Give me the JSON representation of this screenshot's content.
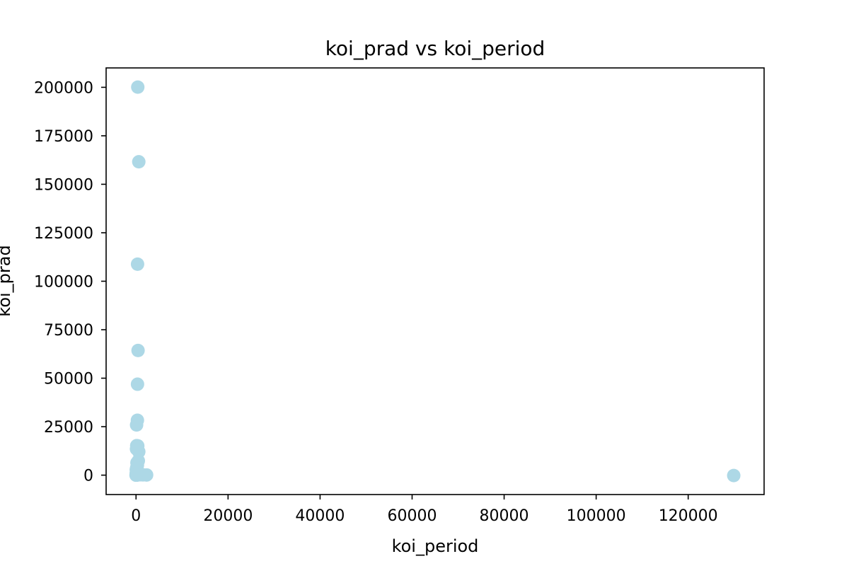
{
  "chart_data": {
    "type": "scatter",
    "title": "koi_prad vs koi_period",
    "xlabel": "koi_period",
    "ylabel": "koi_prad",
    "xlim": [
      -6500,
      136500
    ],
    "ylim": [
      -10000,
      210000
    ],
    "xticks": [
      0,
      20000,
      40000,
      60000,
      80000,
      100000,
      120000
    ],
    "yticks": [
      0,
      25000,
      50000,
      75000,
      100000,
      125000,
      150000,
      175000,
      200000
    ],
    "grid": false,
    "legend": "none",
    "marker_color": "#add8e6",
    "series": [
      {
        "points": [
          [
            380,
            200100
          ],
          [
            600,
            161600
          ],
          [
            330,
            108800
          ],
          [
            440,
            64300
          ],
          [
            320,
            46900
          ],
          [
            300,
            28300
          ],
          [
            120,
            25900
          ],
          [
            150,
            15200
          ],
          [
            380,
            15100
          ],
          [
            100,
            13500
          ],
          [
            600,
            12100
          ],
          [
            500,
            7400
          ],
          [
            200,
            6400
          ],
          [
            300,
            5100
          ],
          [
            150,
            3900
          ],
          [
            50,
            2800
          ],
          [
            250,
            2100
          ],
          [
            80,
            1600
          ],
          [
            400,
            1100
          ],
          [
            30,
            700
          ],
          [
            150,
            400
          ],
          [
            600,
            300
          ],
          [
            900,
            200
          ],
          [
            1500,
            150
          ],
          [
            2300,
            100
          ],
          [
            10,
            80
          ],
          [
            60,
            50
          ],
          [
            120,
            40
          ],
          [
            250,
            30
          ],
          [
            5,
            20
          ],
          [
            20,
            10
          ],
          [
            129900,
            -200
          ]
        ]
      }
    ]
  }
}
